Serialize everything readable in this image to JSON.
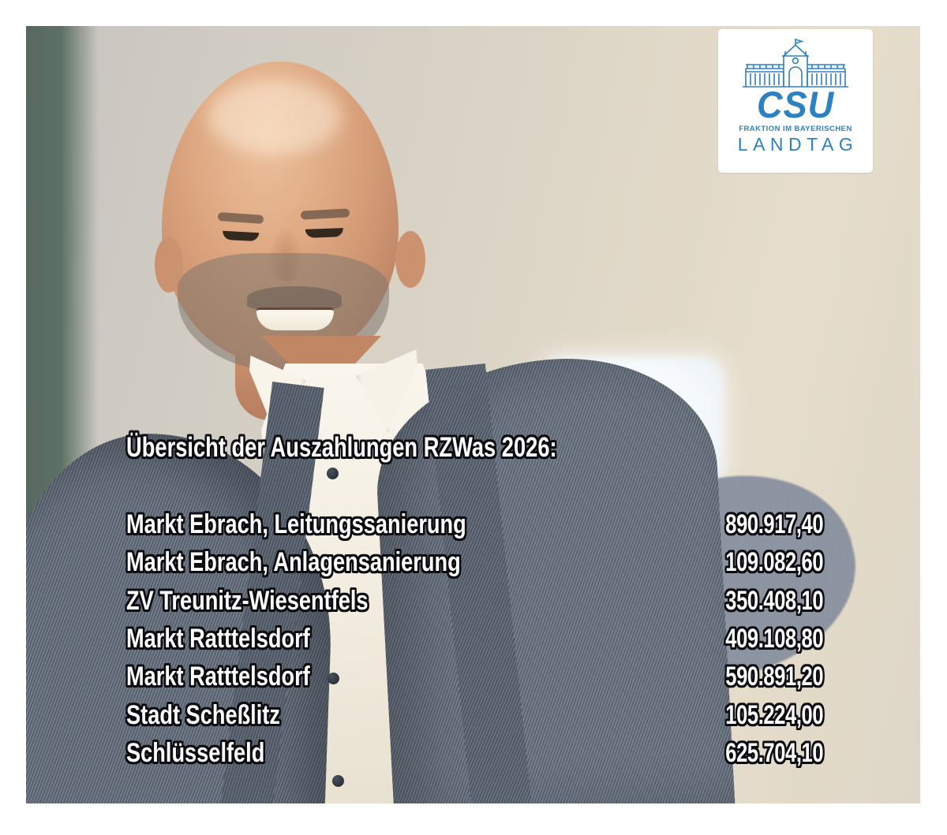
{
  "logo": {
    "org": "CSU",
    "line1": "FRAKTION IM BAYERISCHEN",
    "line2": "LANDTAG",
    "brand_color": "#2e81c1"
  },
  "overlay": {
    "title": "Übersicht der Auszahlungen RZWas 2026:",
    "rows": [
      {
        "label": "Markt Ebrach, Leitungssanierung",
        "amount": "890.917,40"
      },
      {
        "label": "Markt Ebrach, Anlagensanierung",
        "amount": "109.082,60"
      },
      {
        "label": "ZV Treunitz-Wiesentfels",
        "amount": "350.408,10"
      },
      {
        "label": "Markt Ratttelsdorf",
        "amount": "409.108,80"
      },
      {
        "label": "Markt Ratttelsdorf",
        "amount": "590.891,20"
      },
      {
        "label": "Stadt Scheßlitz",
        "amount": "105.224,00"
      },
      {
        "label": "Schlüsselfeld",
        "amount": "625.704,10"
      }
    ]
  }
}
